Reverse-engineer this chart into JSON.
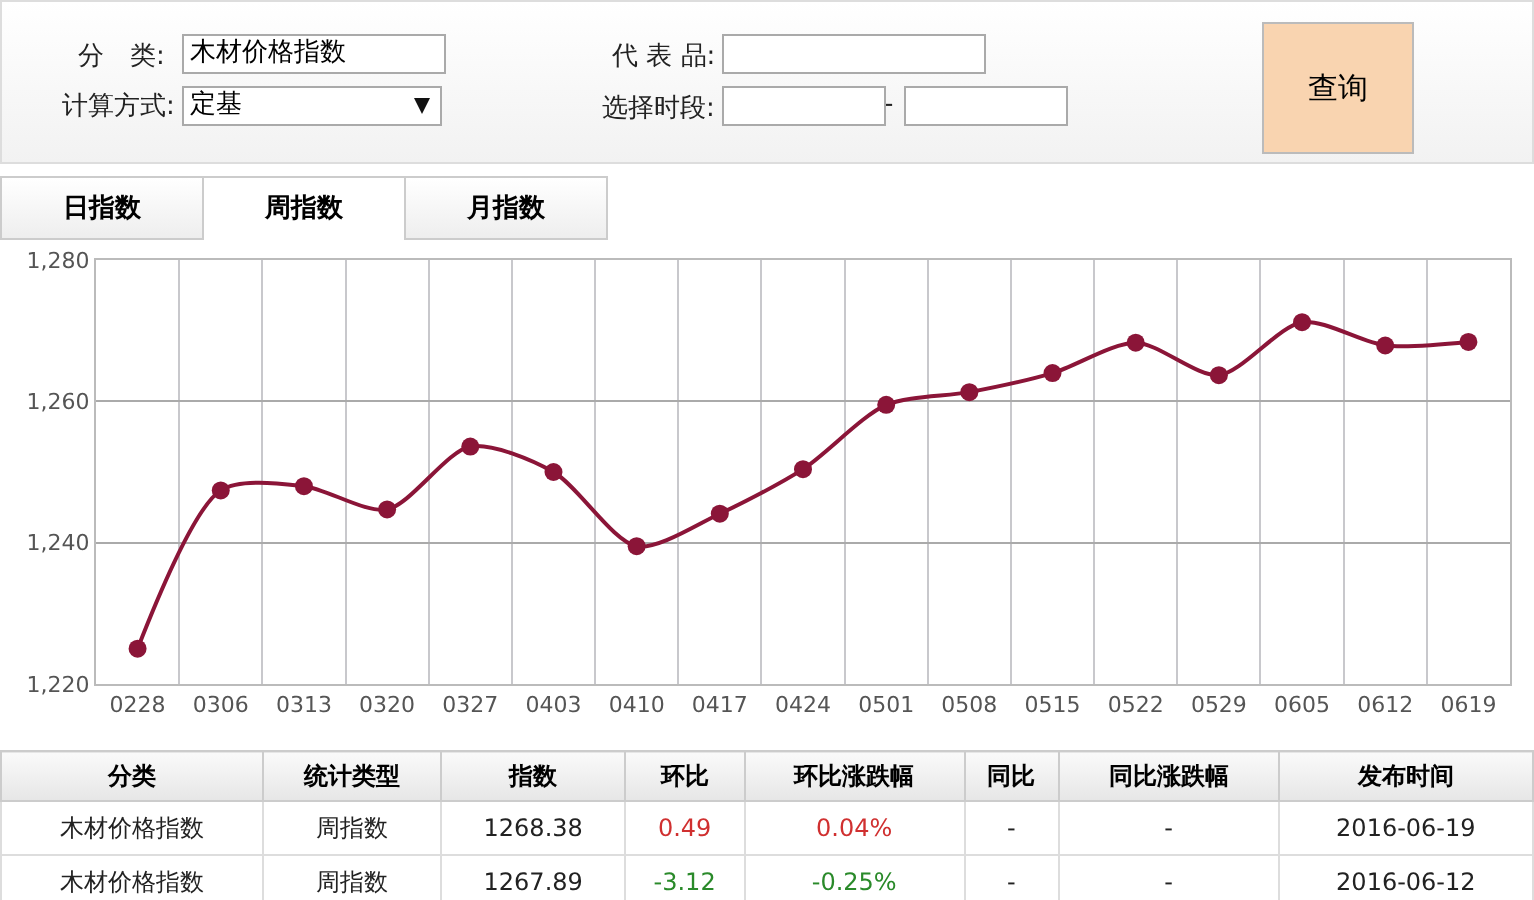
{
  "chart_data": [
    {
      "type": "other",
      "annotations": [
        "分　类:",
        "木材价格指数",
        "代 表 品:",
        "计算方式:",
        "定基",
        "选择时段:",
        "-",
        "查询",
        "日指数",
        "周指数",
        "月指数"
      ]
    },
    {
      "type": "line",
      "categories": [
        "0228",
        "0306",
        "0313",
        "0320",
        "0327",
        "0403",
        "0410",
        "0417",
        "0424",
        "0501",
        "0508",
        "0515",
        "0522",
        "0529",
        "0605",
        "0612",
        "0619"
      ],
      "series": [
        {
          "color": "#8b1538",
          "values": [
            1225.0,
            1247.4,
            1248.0,
            1244.7,
            1253.6,
            1250.0,
            1239.5,
            1244.1,
            1250.4,
            1259.5,
            1261.3,
            1264.0,
            1268.3,
            1263.7,
            1271.2,
            1267.9,
            1268.4
          ]
        }
      ],
      "ylim": [
        1220,
        1280
      ],
      "yticks": [
        {
          "value": 1220,
          "label": "1,220"
        },
        {
          "value": 1240,
          "label": "1,240"
        },
        {
          "value": 1260,
          "label": "1,260"
        },
        {
          "value": 1280,
          "label": "1,280"
        }
      ],
      "grid": true,
      "marker": "circle",
      "line_style": "solid"
    },
    {
      "type": "other",
      "categories": [
        "分类",
        "统计类型",
        "指数",
        "环比",
        "环比涨跌幅",
        "同比",
        "同比涨跌幅",
        "发布时间"
      ],
      "cell_labels": [
        [
          "木材价格指数",
          "周指数",
          "1268.38",
          "0.49",
          "0.04%",
          "-",
          "-",
          "2016-06-19"
        ],
        [
          "木材价格指数",
          "周指数",
          "1267.89",
          "-3.12",
          "-0.25%",
          "-",
          "-",
          "2016-06-12"
        ]
      ]
    }
  ]
}
